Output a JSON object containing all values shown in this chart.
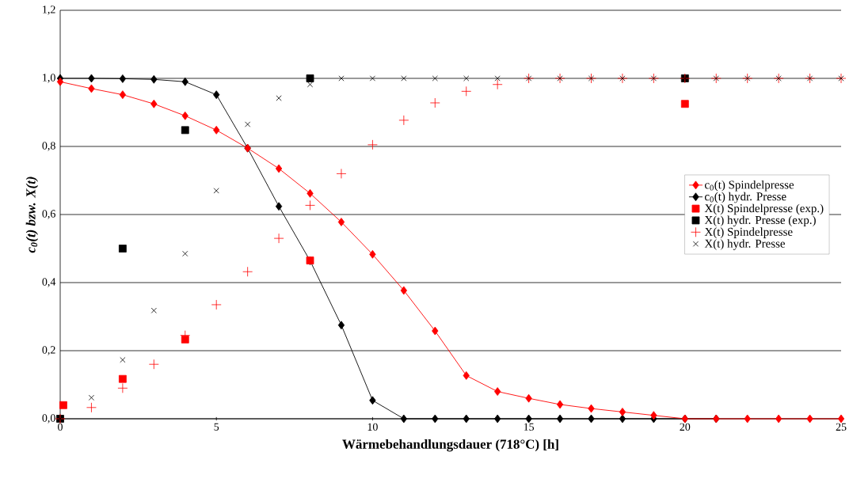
{
  "chart_data": {
    "type": "line",
    "xlabel": "Wärmebehandlungsdauer (718°C) [h]",
    "ylabel": "c$_{0}$(t)  bzw. X(t)",
    "xlim": [
      0,
      25
    ],
    "ylim": [
      0,
      1.2
    ],
    "xticks": [
      0,
      5,
      10,
      15,
      20,
      25
    ],
    "yticks": [
      {
        "value": 0,
        "label": "0,0"
      },
      {
        "value": 0.2,
        "label": "0,2"
      },
      {
        "value": 0.4,
        "label": "0,4"
      },
      {
        "value": 0.6,
        "label": "0,6"
      },
      {
        "value": 0.8,
        "label": "0,8"
      },
      {
        "value": 1.0,
        "label": "1,0"
      },
      {
        "value": 1.2,
        "label": "1,2"
      }
    ],
    "grid": "y",
    "legend": "right",
    "series": [
      {
        "name": "c$_{0}$(t) Spindelpresse",
        "marker": "diamond",
        "color": "#ff0000",
        "x": [
          0,
          1,
          2,
          3,
          4,
          5,
          6,
          7,
          8,
          9,
          10,
          11,
          12,
          13,
          14,
          15,
          16,
          17,
          18,
          19,
          20,
          21,
          22,
          23,
          24,
          25
        ],
        "values": [
          0.99,
          0.97,
          0.952,
          0.925,
          0.89,
          0.848,
          0.795,
          0.735,
          0.662,
          0.578,
          0.483,
          0.377,
          0.258,
          0.127,
          0.08,
          0.06,
          0.042,
          0.03,
          0.02,
          0.01,
          0,
          0,
          0,
          0,
          0,
          0
        ]
      },
      {
        "name": "c$_{0}$(t) hydr. Presse",
        "marker": "diamond",
        "color": "#000000",
        "x": [
          0,
          1,
          2,
          3,
          4,
          5,
          6,
          7,
          8,
          9,
          10,
          11,
          12,
          13,
          14,
          15,
          16,
          17,
          18,
          19,
          20,
          21
        ],
        "values": [
          1.0,
          1.0,
          0.999,
          0.997,
          0.99,
          0.952,
          0.795,
          0.624,
          0.464,
          0.275,
          0.054,
          0,
          0,
          0,
          0,
          0,
          0,
          0,
          0,
          0,
          0,
          0
        ]
      },
      {
        "name": "X(t) Spindelpresse (exp.)",
        "type": "scatter",
        "marker": "square",
        "color": "#ff0000",
        "x": [
          0.1,
          2,
          4,
          8,
          20
        ],
        "values": [
          0.04,
          0.117,
          0.233,
          0.465,
          0.925
        ]
      },
      {
        "name": "X(t) hydr. Presse (exp.)",
        "type": "scatter",
        "marker": "square",
        "color": "#000000",
        "x": [
          0,
          2,
          4,
          8,
          20
        ],
        "values": [
          0,
          0.5,
          0.848,
          1.0,
          1.0
        ]
      },
      {
        "name": "X(t) Spindelpresse",
        "type": "scatter",
        "marker": "plus",
        "color": "#ff0000",
        "x": [
          0,
          1,
          2,
          3,
          4,
          5,
          6,
          7,
          8,
          9,
          10,
          11,
          12,
          13,
          14,
          15,
          16,
          17,
          18,
          19,
          20,
          21,
          22,
          23,
          24,
          25
        ],
        "values": [
          0,
          0.033,
          0.09,
          0.16,
          0.245,
          0.335,
          0.432,
          0.53,
          0.627,
          0.72,
          0.805,
          0.877,
          0.928,
          0.962,
          0.982,
          1.0,
          1.0,
          1.0,
          1.0,
          1.0,
          1.0,
          1.0,
          1.0,
          1.0,
          1.0,
          1.0
        ]
      },
      {
        "name": "X(t) hydr. Presse",
        "type": "scatter",
        "marker": "cross",
        "color": "#000000",
        "x": [
          0,
          1,
          2,
          3,
          4,
          5,
          6,
          7,
          8,
          9,
          10,
          11,
          12,
          13,
          14,
          15,
          16,
          17,
          18,
          19,
          20,
          21,
          22,
          23,
          24,
          25
        ],
        "values": [
          0,
          0.062,
          0.173,
          0.318,
          0.485,
          0.67,
          0.865,
          0.942,
          0.982,
          1.0,
          1.0,
          1.0,
          1.0,
          1.0,
          1.0,
          1.0,
          1.0,
          1.0,
          1.0,
          1.0,
          1.0,
          1.0,
          1.0,
          1.0,
          1.0,
          1.0
        ]
      }
    ]
  }
}
